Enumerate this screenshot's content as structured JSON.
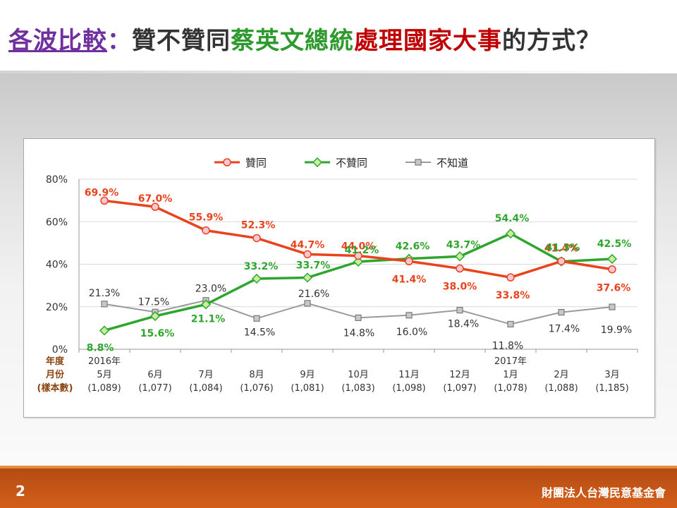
{
  "title": {
    "prefix": "各波比較",
    "sep": "：",
    "part1": "贊不贊同",
    "part2": "蔡英文總統",
    "part3": "處理國家大事",
    "part4": "的方式？"
  },
  "footer": {
    "page": "2",
    "org": "財團法人台灣民意基金會"
  },
  "colors": {
    "approve": "#e8431d",
    "disapprove": "#2ea62e",
    "unknown": "#9a9a9a"
  },
  "chart_data": {
    "type": "line",
    "ylim": [
      0,
      80
    ],
    "yticks": [
      "0%",
      "20%",
      "40%",
      "60%",
      "80%"
    ],
    "xlabel_lines": [
      "年度",
      "月份",
      "(樣本數)"
    ],
    "categories": [
      [
        "2016年",
        "5月",
        "(1,089)"
      ],
      [
        "6月",
        "(1,077)"
      ],
      [
        "7月",
        "(1,084)"
      ],
      [
        "8月",
        "(1,076)"
      ],
      [
        "9月",
        "(1,081)"
      ],
      [
        "10月",
        "(1,083)"
      ],
      [
        "11月",
        "(1,098)"
      ],
      [
        "12月",
        "(1,097)"
      ],
      [
        "2017年",
        "1月",
        "(1,078)"
      ],
      [
        "2月",
        "(1,088)"
      ],
      [
        "3月",
        "(1,185)"
      ]
    ],
    "series": [
      {
        "name": "贊同",
        "color": "#e8431d",
        "marker": "circle",
        "values": [
          69.9,
          67.0,
          55.9,
          52.3,
          44.7,
          44.0,
          41.4,
          38.0,
          33.8,
          41.4,
          37.6
        ],
        "labels": [
          "69.9%",
          "67.0%",
          "55.9%",
          "52.3%",
          "44.7%",
          "44.0%",
          "41.4%",
          "38.0%",
          "33.8%",
          "41.4%",
          "37.6%"
        ]
      },
      {
        "name": "不贊同",
        "color": "#2ea62e",
        "marker": "diamond",
        "values": [
          8.8,
          15.6,
          21.1,
          33.2,
          33.7,
          41.2,
          42.6,
          43.7,
          54.4,
          41.3,
          42.5
        ],
        "labels": [
          "8.8%",
          "15.6%",
          "21.1%",
          "33.2%",
          "33.7%",
          "41.2%",
          "42.6%",
          "43.7%",
          "54.4%",
          "41.3%",
          "42.5%"
        ]
      },
      {
        "name": "不知道",
        "color": "#9a9a9a",
        "marker": "square",
        "values": [
          21.3,
          17.5,
          23.0,
          14.5,
          21.6,
          14.8,
          16.0,
          18.4,
          11.8,
          17.4,
          19.9
        ],
        "labels": [
          "21.3%",
          "17.5%",
          "23.0%",
          "14.5%",
          "21.6%",
          "14.8%",
          "16.0%",
          "18.4%",
          "11.8%",
          "17.4%",
          "19.9%"
        ]
      }
    ]
  }
}
